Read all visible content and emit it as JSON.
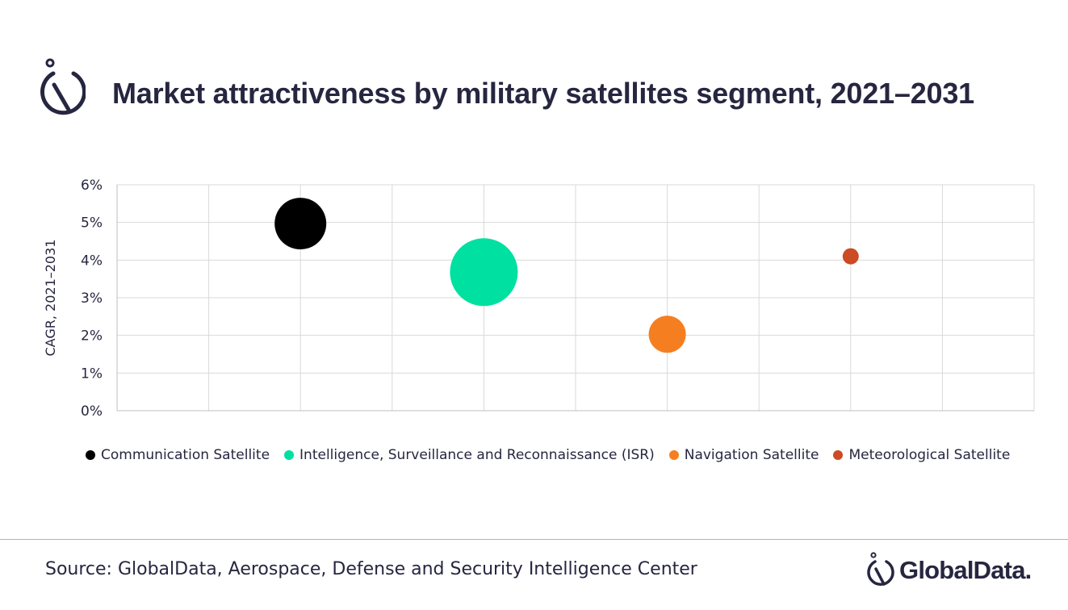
{
  "header": {
    "title": "Market attractiveness by military satellites segment, 2021–2031",
    "logo_icon": "globaldata-mark-icon"
  },
  "chart_data": {
    "type": "bubble",
    "title": "Market attractiveness by military satellites segment, 2021–2031",
    "xlabel": "",
    "ylabel": "CAGR, 2021–2031",
    "xlim": [
      0,
      10
    ],
    "ylim": [
      0,
      6
    ],
    "y_ticks": [
      "0%",
      "1%",
      "2%",
      "3%",
      "4%",
      "5%",
      "6%"
    ],
    "x_tick_labels_visible": false,
    "grid": true,
    "legend_position": "bottom",
    "series": [
      {
        "name": "Communication Satellite",
        "color": "#000000",
        "x": 2,
        "y": 4.97,
        "size": 64
      },
      {
        "name": "Intelligence, Surveillance and Reconnaissance (ISR)",
        "color": "#00e0a0",
        "x": 4,
        "y": 3.68,
        "size": 84
      },
      {
        "name": "Navigation Satellite",
        "color": "#f57f20",
        "x": 6,
        "y": 2.03,
        "size": 46
      },
      {
        "name": "Meteorological Satellite",
        "color": "#cc4a24",
        "x": 8,
        "y": 4.1,
        "size": 20
      }
    ]
  },
  "footer": {
    "source": "Source: GlobalData, Aerospace, Defense and Security Intelligence Center",
    "brand": "GlobalData.",
    "brand_icon": "globaldata-mark-icon"
  },
  "colors": {
    "text": "#262640",
    "grid": "#d9d9d9",
    "axis": "#bfbfbf",
    "divider": "#b4b4b4"
  }
}
